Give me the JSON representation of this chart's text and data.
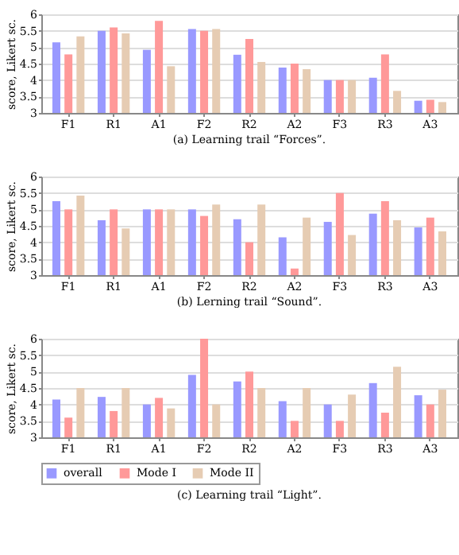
{
  "chart_data": [
    {
      "type": "bar",
      "title": "(a) Learning trail “Forces”.",
      "ylabel": "score, Likert sc.",
      "categories": [
        "F1",
        "R1",
        "A1",
        "F2",
        "R2",
        "A2",
        "F3",
        "R3",
        "A3"
      ],
      "ylim": [
        3,
        6
      ],
      "yticks": [
        3,
        3.5,
        4,
        4.5,
        5,
        5.5,
        6
      ],
      "grid": "y",
      "legend": false,
      "series": [
        {
          "color": "#9999ff",
          "values": [
            5.15,
            5.5,
            4.92,
            5.55,
            4.77,
            4.38,
            4.0,
            4.07,
            3.37
          ]
        },
        {
          "color": "#ff9999",
          "values": [
            4.78,
            5.6,
            5.8,
            5.5,
            5.25,
            4.5,
            4.0,
            4.78,
            3.4
          ]
        },
        {
          "color": "#e6ccb3",
          "values": [
            5.33,
            5.42,
            4.42,
            5.55,
            4.55,
            4.33,
            4.0,
            3.67,
            3.33
          ]
        }
      ]
    },
    {
      "type": "bar",
      "title": "(b) Lerning trail “Sound”.",
      "ylabel": "score, Likert sc.",
      "categories": [
        "F1",
        "R1",
        "A1",
        "F2",
        "R2",
        "A2",
        "F3",
        "R3",
        "A3"
      ],
      "ylim": [
        3,
        6
      ],
      "yticks": [
        3,
        3.5,
        4,
        4.5,
        5,
        5.5,
        6
      ],
      "grid": "y",
      "legend": false,
      "series": [
        {
          "color": "#9999ff",
          "values": [
            5.25,
            4.67,
            5.0,
            5.0,
            4.7,
            4.15,
            4.62,
            4.87,
            4.45
          ]
        },
        {
          "color": "#ff9999",
          "values": [
            5.0,
            5.0,
            5.0,
            4.8,
            4.0,
            3.2,
            5.5,
            5.25,
            4.75
          ]
        },
        {
          "color": "#e6ccb3",
          "values": [
            5.42,
            4.42,
            5.0,
            5.15,
            5.15,
            4.75,
            4.22,
            4.67,
            4.33
          ]
        }
      ]
    },
    {
      "type": "bar",
      "title": "(c) Learning trail “Light”.",
      "ylabel": "score, Likert sc.",
      "categories": [
        "F1",
        "R1",
        "A1",
        "F2",
        "R2",
        "A2",
        "F3",
        "R3",
        "A3"
      ],
      "ylim": [
        3,
        6
      ],
      "yticks": [
        3,
        3.5,
        4,
        4.5,
        5,
        5.5,
        6
      ],
      "grid": "y",
      "legend": "bottom",
      "series": [
        {
          "name": "overall",
          "color": "#9999ff",
          "values": [
            4.15,
            4.23,
            4.0,
            4.9,
            4.7,
            4.1,
            4.0,
            4.65,
            4.28
          ]
        },
        {
          "name": "Mode I",
          "color": "#ff9999",
          "values": [
            3.6,
            3.8,
            4.2,
            6.0,
            5.0,
            3.5,
            3.5,
            3.75,
            4.0
          ]
        },
        {
          "name": "Mode II",
          "color": "#e6ccb3",
          "values": [
            4.5,
            4.5,
            3.88,
            4.0,
            4.5,
            4.5,
            4.3,
            5.15,
            4.45
          ]
        }
      ]
    }
  ]
}
